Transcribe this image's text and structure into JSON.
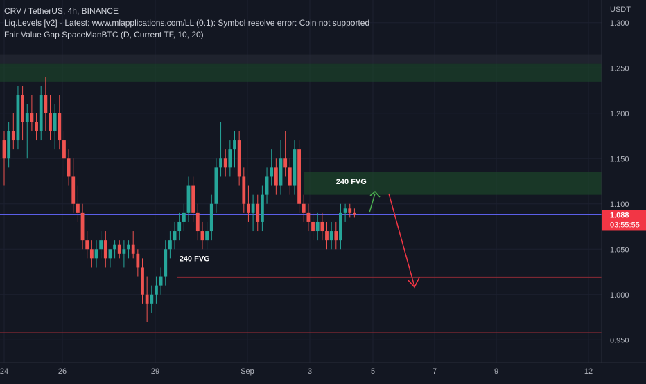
{
  "legend": {
    "symbol_line": "CRV / TetherUS, 4h, BINANCE",
    "indicator_1": "Liq.Levels [v2] - Latest: www.mlapplications.com/LL (0.1): Symbol resolve error: Coin not supported",
    "indicator_2": "Fair Value Gap SpaceManBTC (D, Current TF, 10, 20)"
  },
  "price_axis": {
    "unit": "USDT",
    "current_price": "1.088",
    "countdown": "03:55:55"
  },
  "colors": {
    "background": "#131722",
    "bull": "#26a69a",
    "bear": "#ef5350",
    "fvg_zone": "#1e4d2b",
    "current_price_line": "#5b5fe8",
    "support_line": "#8c2a35",
    "arrow_up": "#4caf50",
    "arrow_down": "#f23645",
    "price_tag": "#f23645"
  },
  "chart_data": {
    "type": "candlestick",
    "symbol": "CRV / TetherUS",
    "timeframe": "4h",
    "exchange": "BINANCE",
    "ylim": [
      0.925,
      1.325
    ],
    "y_ticks": [
      "1.300",
      "1.250",
      "1.200",
      "1.150",
      "1.100",
      "1.050",
      "1.000",
      "0.950"
    ],
    "x_ticks": [
      "24",
      "26",
      "29",
      "Sep",
      "3",
      "5",
      "7",
      "9",
      "12"
    ],
    "candles": [
      [
        1.17,
        1.18,
        1.12,
        1.15
      ],
      [
        1.15,
        1.19,
        1.14,
        1.18
      ],
      [
        1.18,
        1.2,
        1.16,
        1.17
      ],
      [
        1.17,
        1.23,
        1.16,
        1.22
      ],
      [
        1.22,
        1.23,
        1.17,
        1.19
      ],
      [
        1.19,
        1.21,
        1.15,
        1.2
      ],
      [
        1.2,
        1.22,
        1.18,
        1.19
      ],
      [
        1.19,
        1.2,
        1.17,
        1.18
      ],
      [
        1.18,
        1.23,
        1.17,
        1.22
      ],
      [
        1.22,
        1.24,
        1.18,
        1.2
      ],
      [
        1.2,
        1.22,
        1.17,
        1.18
      ],
      [
        1.18,
        1.21,
        1.16,
        1.2
      ],
      [
        1.2,
        1.22,
        1.16,
        1.17
      ],
      [
        1.17,
        1.18,
        1.13,
        1.15
      ],
      [
        1.15,
        1.16,
        1.12,
        1.13
      ],
      [
        1.13,
        1.15,
        1.09,
        1.1
      ],
      [
        1.1,
        1.12,
        1.08,
        1.09
      ],
      [
        1.09,
        1.1,
        1.05,
        1.06
      ],
      [
        1.06,
        1.07,
        1.04,
        1.05
      ],
      [
        1.05,
        1.06,
        1.03,
        1.04
      ],
      [
        1.04,
        1.06,
        1.03,
        1.05
      ],
      [
        1.05,
        1.07,
        1.04,
        1.06
      ],
      [
        1.06,
        1.07,
        1.03,
        1.04
      ],
      [
        1.04,
        1.05,
        1.03,
        1.05
      ],
      [
        1.05,
        1.06,
        1.04,
        1.055
      ],
      [
        1.055,
        1.06,
        1.04,
        1.045
      ],
      [
        1.045,
        1.06,
        1.03,
        1.05
      ],
      [
        1.05,
        1.06,
        1.04,
        1.055
      ],
      [
        1.055,
        1.07,
        1.04,
        1.045
      ],
      [
        1.045,
        1.05,
        1.02,
        1.03
      ],
      [
        1.03,
        1.04,
        0.99,
        1.0
      ],
      [
        1.0,
        1.02,
        0.97,
        0.99
      ],
      [
        0.99,
        1.01,
        0.98,
        1.0
      ],
      [
        1.0,
        1.02,
        0.99,
        1.01
      ],
      [
        1.01,
        1.03,
        1.0,
        1.02
      ],
      [
        1.02,
        1.06,
        1.01,
        1.05
      ],
      [
        1.05,
        1.07,
        1.04,
        1.06
      ],
      [
        1.06,
        1.08,
        1.05,
        1.07
      ],
      [
        1.07,
        1.09,
        1.06,
        1.08
      ],
      [
        1.08,
        1.1,
        1.07,
        1.09
      ],
      [
        1.09,
        1.13,
        1.08,
        1.12
      ],
      [
        1.12,
        1.13,
        1.08,
        1.09
      ],
      [
        1.09,
        1.1,
        1.06,
        1.07
      ],
      [
        1.07,
        1.08,
        1.05,
        1.06
      ],
      [
        1.06,
        1.08,
        1.05,
        1.07
      ],
      [
        1.07,
        1.11,
        1.06,
        1.1
      ],
      [
        1.1,
        1.15,
        1.09,
        1.14
      ],
      [
        1.14,
        1.19,
        1.13,
        1.15
      ],
      [
        1.15,
        1.16,
        1.13,
        1.14
      ],
      [
        1.14,
        1.17,
        1.13,
        1.16
      ],
      [
        1.16,
        1.18,
        1.14,
        1.17
      ],
      [
        1.17,
        1.18,
        1.12,
        1.13
      ],
      [
        1.13,
        1.14,
        1.09,
        1.1
      ],
      [
        1.1,
        1.12,
        1.08,
        1.09
      ],
      [
        1.09,
        1.11,
        1.07,
        1.1
      ],
      [
        1.1,
        1.11,
        1.07,
        1.08
      ],
      [
        1.08,
        1.12,
        1.07,
        1.11
      ],
      [
        1.11,
        1.14,
        1.1,
        1.13
      ],
      [
        1.13,
        1.16,
        1.12,
        1.14
      ],
      [
        1.14,
        1.15,
        1.11,
        1.12
      ],
      [
        1.12,
        1.17,
        1.11,
        1.15
      ],
      [
        1.15,
        1.18,
        1.13,
        1.14
      ],
      [
        1.14,
        1.15,
        1.11,
        1.12
      ],
      [
        1.12,
        1.17,
        1.11,
        1.16
      ],
      [
        1.16,
        1.17,
        1.09,
        1.1
      ],
      [
        1.1,
        1.11,
        1.08,
        1.09
      ],
      [
        1.09,
        1.1,
        1.07,
        1.08
      ],
      [
        1.08,
        1.09,
        1.06,
        1.07
      ],
      [
        1.07,
        1.09,
        1.06,
        1.08
      ],
      [
        1.08,
        1.09,
        1.06,
        1.07
      ],
      [
        1.07,
        1.08,
        1.05,
        1.06
      ],
      [
        1.06,
        1.08,
        1.05,
        1.07
      ],
      [
        1.07,
        1.08,
        1.05,
        1.06
      ],
      [
        1.06,
        1.1,
        1.05,
        1.09
      ],
      [
        1.09,
        1.1,
        1.08,
        1.095
      ],
      [
        1.095,
        1.1,
        1.085,
        1.09
      ],
      [
        1.09,
        1.095,
        1.085,
        1.088
      ]
    ],
    "zones": [
      {
        "from": 1.255,
        "to": 1.265
      },
      {
        "from": 1.235,
        "to": 1.255
      },
      {
        "from": 1.11,
        "to": 1.135
      }
    ],
    "horizontal_lines": {
      "current_price": 1.088,
      "support": 1.019,
      "lower": 0.958
    },
    "annotations": [
      {
        "text": "240 FVG",
        "x_index": 72,
        "price": 1.125
      },
      {
        "text": "240 FVG",
        "x_index": 38,
        "price": 1.04
      }
    ]
  }
}
